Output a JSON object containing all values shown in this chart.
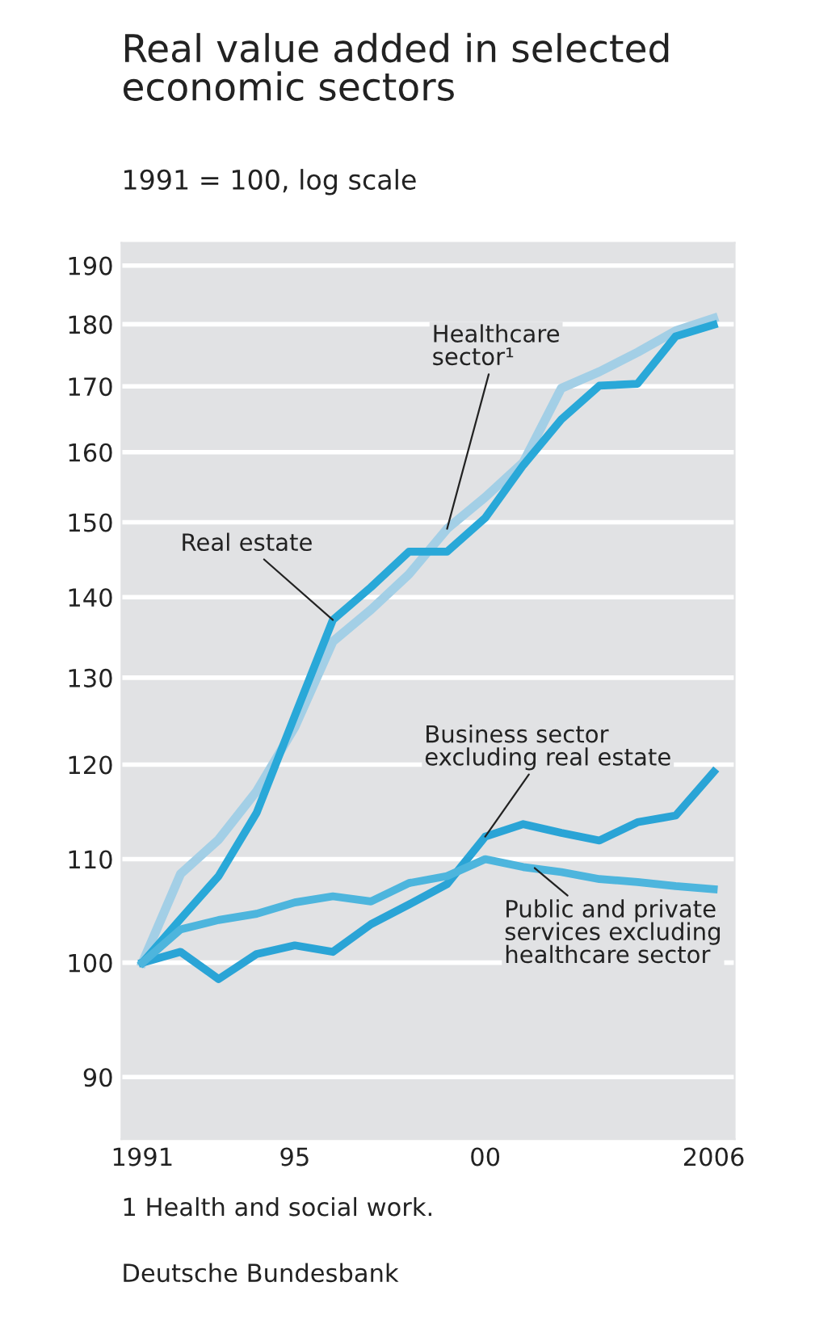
{
  "chart_data": {
    "type": "line",
    "title": "Real value added in selected\neconomic sectors",
    "subtitle": "1991 = 100, log scale",
    "x": [
      1991,
      1992,
      1993,
      1994,
      1995,
      1996,
      1997,
      1998,
      1999,
      2000,
      2001,
      2002,
      2003,
      2004,
      2005,
      2006
    ],
    "series": [
      {
        "name": "Healthcare\nsector¹",
        "color": "#a3cfe6",
        "values": [
          100,
          108.5,
          112.0,
          117.1,
          124.2,
          134.4,
          138.4,
          143.0,
          149.1,
          153.5,
          158.5,
          169.7,
          172.3,
          175.4,
          178.9,
          181.0
        ]
      },
      {
        "name": "Real estate",
        "color": "#29a8d8",
        "values": [
          100,
          104.1,
          108.3,
          114.8,
          125.5,
          137.1,
          141.3,
          146.0,
          146.0,
          150.6,
          158.1,
          164.9,
          170.1,
          170.4,
          178.0,
          179.9
        ]
      },
      {
        "name": "Business sector\nexcluding real estate",
        "color": "#2aa4d6",
        "values": [
          100,
          101.0,
          98.5,
          100.8,
          101.6,
          101.0,
          103.6,
          105.5,
          107.5,
          112.3,
          113.6,
          112.7,
          111.9,
          113.8,
          114.5,
          119.2
        ]
      },
      {
        "name": "Public and private\nservices excluding\nhealthcare sector",
        "color": "#4db5dd",
        "values": [
          100,
          103.1,
          104.0,
          104.6,
          105.7,
          106.3,
          105.8,
          107.6,
          108.3,
          110.0,
          109.2,
          108.7,
          108.0,
          107.7,
          107.3,
          107.0
        ]
      }
    ],
    "log": "y",
    "xlim": [
      1990.45,
      2006.55
    ],
    "ylim": [
      85,
      194
    ],
    "xticks": [
      {
        "value": 1991,
        "label": "1991"
      },
      {
        "value": 1995,
        "label": "95"
      },
      {
        "value": 2000,
        "label": "00"
      },
      {
        "value": 2006,
        "label": "2006"
      }
    ],
    "yticks": [
      90,
      100,
      110,
      120,
      130,
      140,
      150,
      160,
      170,
      180,
      190
    ],
    "grid": "y",
    "marker": "none",
    "line_style": "solid",
    "annotations": [
      "1 Health and social work.",
      "Deutsche Bundesbank"
    ]
  }
}
